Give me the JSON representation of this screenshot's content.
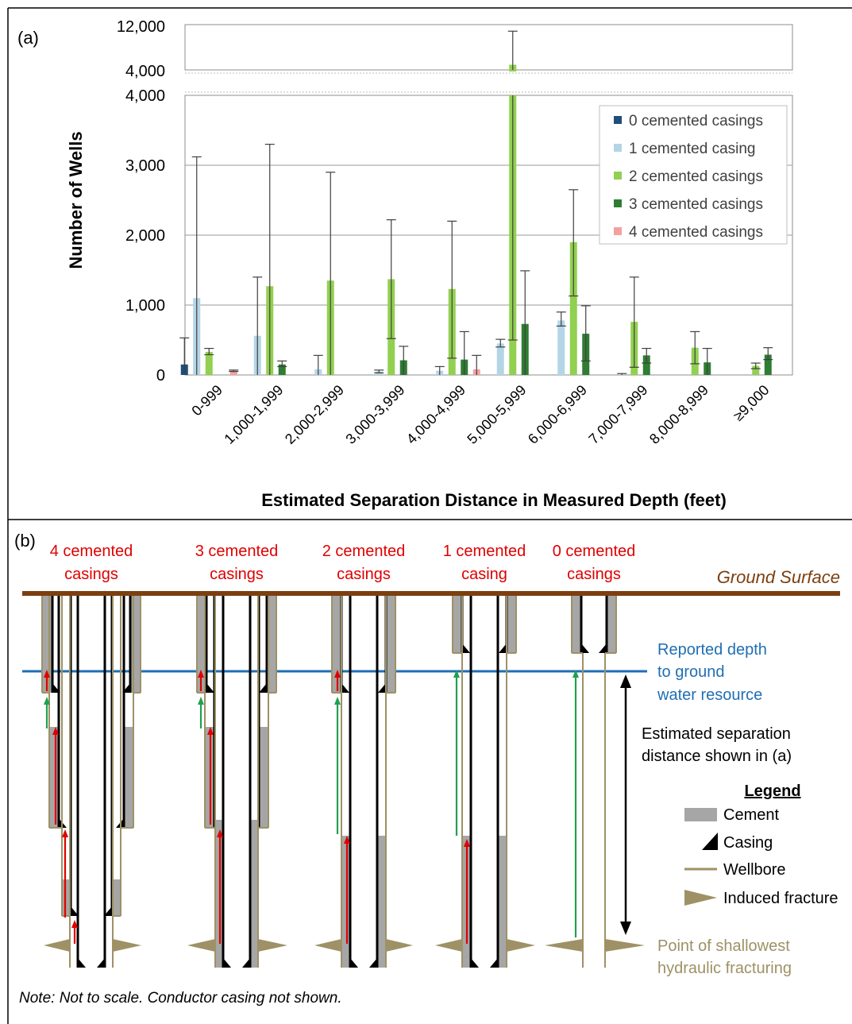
{
  "panel_a": {
    "label": "(a)",
    "chart_data": {
      "type": "bar",
      "ylabel": "Number of Wells",
      "xlabel": "Estimated Separation Distance in Measured Depth (feet)",
      "broken_axis": true,
      "ylim_lower": [
        0,
        4000
      ],
      "ylim_upper": [
        4000,
        12000
      ],
      "yticks_lower": [
        "0",
        "1,000",
        "2,000",
        "3,000",
        "4,000"
      ],
      "yticks_upper": [
        "4,000",
        "12,000"
      ],
      "grid": true,
      "legend_position": "top-right",
      "categories": [
        "0-999",
        "1,000-1,999",
        "2,000-2,999",
        "3,000-3,999",
        "4,000-4,999",
        "5,000-5,999",
        "6,000-6,999",
        "7,000-7,999",
        "8,000-8,999",
        "≥9,000"
      ],
      "series": [
        {
          "name": "0 cemented casings",
          "color": "#1f4e79",
          "values": [
            150,
            null,
            null,
            null,
            null,
            null,
            null,
            null,
            null,
            null
          ],
          "err_low": [
            0,
            null,
            null,
            null,
            null,
            null,
            null,
            null,
            null,
            null
          ],
          "err_high": [
            530,
            null,
            null,
            null,
            null,
            null,
            null,
            null,
            null,
            null
          ]
        },
        {
          "name": "1 cemented casing",
          "color": "#b4d5e6",
          "values": [
            1100,
            560,
            80,
            50,
            60,
            450,
            780,
            10,
            null,
            null
          ],
          "err_low": [
            0,
            0,
            0,
            30,
            0,
            400,
            700,
            0,
            null,
            null
          ],
          "err_high": [
            3120,
            1400,
            280,
            70,
            120,
            510,
            900,
            20,
            null,
            null
          ]
        },
        {
          "name": "2 cemented casings",
          "color": "#92d050",
          "values": [
            330,
            1270,
            1350,
            1370,
            1230,
            5000,
            1900,
            760,
            390,
            130
          ],
          "err_low": [
            290,
            0,
            0,
            520,
            240,
            500,
            1130,
            110,
            160,
            90
          ],
          "err_high": [
            380,
            3300,
            2900,
            2220,
            2200,
            11500,
            2650,
            1400,
            620,
            170
          ]
        },
        {
          "name": "3 cemented casings",
          "color": "#2e7d32",
          "values": [
            null,
            150,
            null,
            210,
            220,
            730,
            590,
            280,
            180,
            290
          ],
          "err_low": [
            null,
            120,
            null,
            0,
            0,
            0,
            200,
            170,
            0,
            220
          ],
          "err_high": [
            null,
            200,
            null,
            410,
            620,
            1490,
            990,
            380,
            380,
            390
          ]
        },
        {
          "name": "4 cemented casings",
          "color": "#f4a0a0",
          "values": [
            60,
            null,
            null,
            null,
            80,
            null,
            null,
            null,
            null,
            null
          ],
          "err_low": [
            50,
            null,
            null,
            null,
            0,
            null,
            null,
            null,
            null,
            null
          ],
          "err_high": [
            70,
            null,
            null,
            null,
            280,
            null,
            null,
            null,
            null,
            null
          ]
        }
      ]
    }
  },
  "panel_b": {
    "label": "(b)",
    "well_titles": [
      {
        "line1": "4 cemented",
        "line2": "casings"
      },
      {
        "line1": "3 cemented",
        "line2": "casings"
      },
      {
        "line1": "2 cemented",
        "line2": "casings"
      },
      {
        "line1": "1 cemented",
        "line2": "casing"
      },
      {
        "line1": "0 cemented",
        "line2": "casings"
      }
    ],
    "ground_surface": "Ground Surface",
    "water_lines": [
      "Reported depth",
      "to ground",
      "water resource"
    ],
    "separation_lines": [
      "Estimated separation",
      "distance shown in (a)"
    ],
    "legend": {
      "title": "Legend",
      "cement": "Cement",
      "casing": "Casing",
      "wellbore": "Wellbore",
      "fracture": "Induced fracture"
    },
    "frac_lines": [
      "Point of shallowest",
      "hydraulic fracturing"
    ],
    "note": "Note:  Not to scale. Conductor casing not shown.",
    "colors": {
      "ground": "#7b3f10",
      "water": "#1f6fb4",
      "cement": "#a6a6a6",
      "wellbore": "#9e9165",
      "fracture": "#9e9165",
      "red_arrow": "#e00000",
      "green_arrow": "#21a050",
      "title_red": "#e00000",
      "frac_text": "#9e9165",
      "water_text": "#1f6fb4"
    }
  }
}
